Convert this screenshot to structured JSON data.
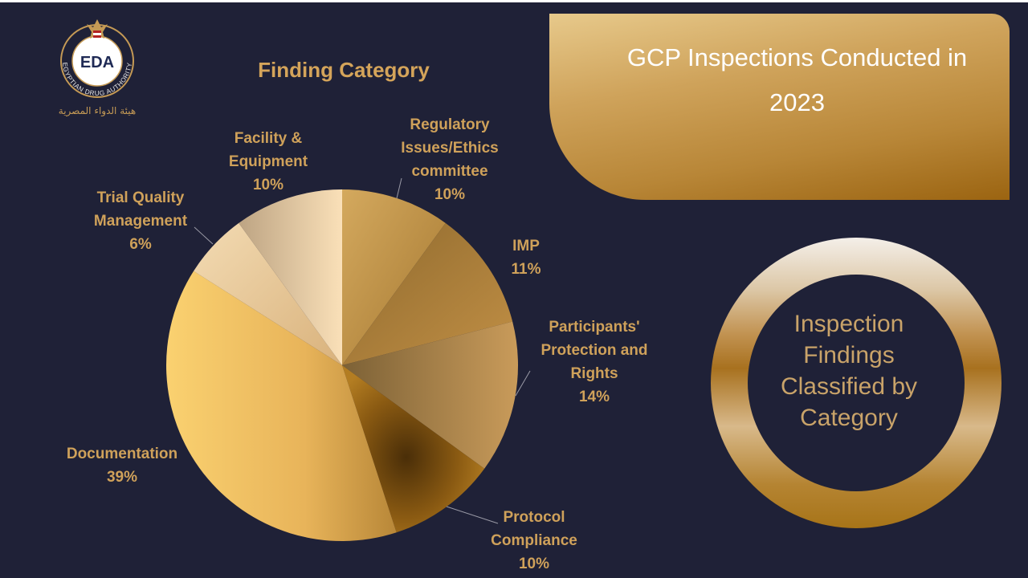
{
  "logo": {
    "monogram": "EDA",
    "arc_text": "EGYPTIAN DRUG AUTHORITY",
    "arabic_text": "هيئة الدواء المصرية"
  },
  "header": {
    "title_line1": "GCP Inspections Conducted in",
    "title_line2": "2023"
  },
  "ring": {
    "line1": "Inspection",
    "line2": "Findings",
    "line3": "Classified by",
    "line4": "Category"
  },
  "chart_data": {
    "type": "pie",
    "title": "Finding Category",
    "slices": [
      {
        "label": "Regulatory Issues/Ethics committee",
        "label_lines": [
          "Regulatory",
          "Issues/Ethics",
          "committee"
        ],
        "value": 10,
        "value_label": "10%"
      },
      {
        "label": "IMP",
        "label_lines": [
          "IMP"
        ],
        "value": 11,
        "value_label": "11%"
      },
      {
        "label": "Participants' Protection and Rights",
        "label_lines": [
          "Participants'",
          "Protection and",
          "Rights"
        ],
        "value": 14,
        "value_label": "14%"
      },
      {
        "label": "Protocol Compliance",
        "label_lines": [
          "Protocol",
          "Compliance"
        ],
        "value": 10,
        "value_label": "10%"
      },
      {
        "label": "Documentation",
        "label_lines": [
          "Documentation"
        ],
        "value": 39,
        "value_label": "39%"
      },
      {
        "label": "Trial Quality Management",
        "label_lines": [
          "Trial Quality",
          "Management"
        ],
        "value": 6,
        "value_label": "6%"
      },
      {
        "label": "Facility & Equipment",
        "label_lines": [
          "Facility &",
          "Equipment"
        ],
        "value": 10,
        "value_label": "10%"
      }
    ],
    "start_angle": "12 o'clock",
    "direction": "clockwise",
    "legend": "none",
    "data_labels": "outside with leader lines"
  }
}
